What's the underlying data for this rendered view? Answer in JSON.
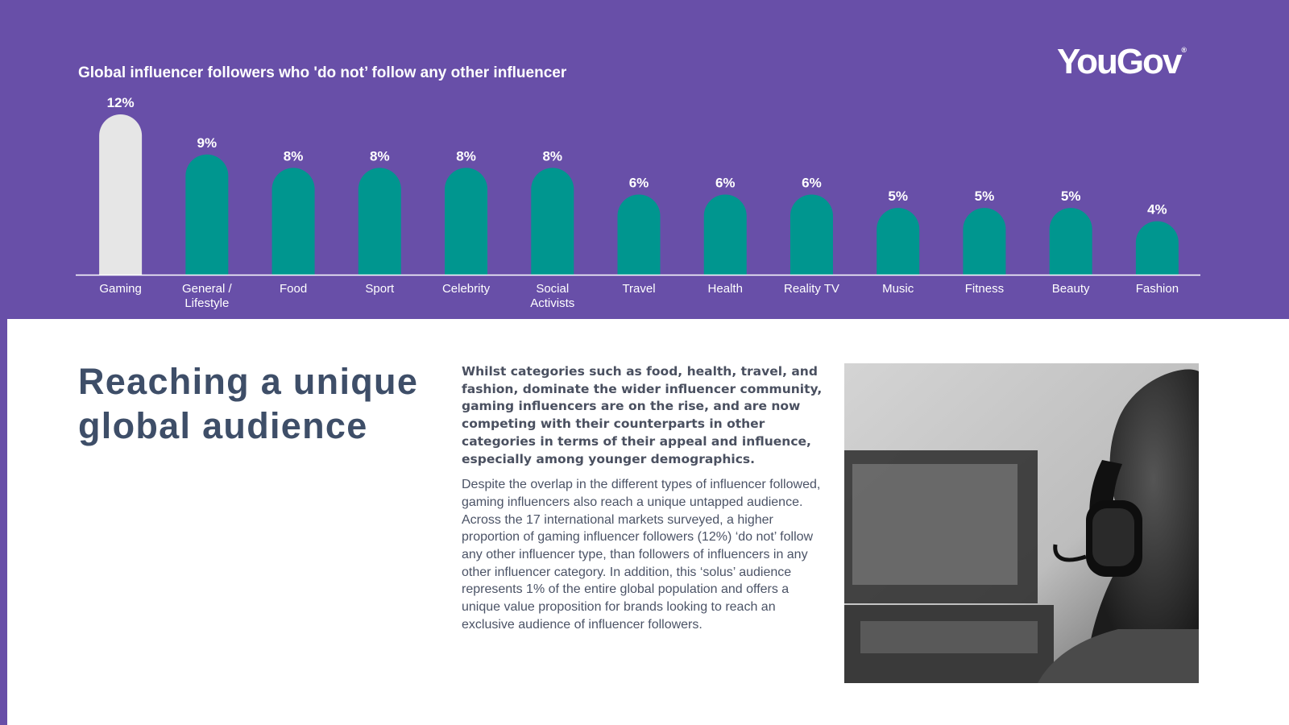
{
  "brand": {
    "logo_text": "YouGov",
    "logo_mark": "®"
  },
  "colors": {
    "background": "#684fa8",
    "highlight_bar": "#e6e6e6",
    "bar": "#00968f",
    "text_light": "#ffffff",
    "headline": "#3e4e68"
  },
  "chart_data": {
    "type": "bar",
    "title": "Global influencer followers who 'do not’ follow any other influencer",
    "categories": [
      "Gaming",
      "General / Lifestyle",
      "Food",
      "Sport",
      "Celebrity",
      "Social Activists",
      "Travel",
      "Health",
      "Reality TV",
      "Music",
      "Fitness",
      "Beauty",
      "Fashion"
    ],
    "category_lines": [
      [
        "Gaming"
      ],
      [
        "General /",
        "Lifestyle"
      ],
      [
        "Food"
      ],
      [
        "Sport"
      ],
      [
        "Celebrity"
      ],
      [
        "Social",
        "Activists"
      ],
      [
        "Travel"
      ],
      [
        "Health"
      ],
      [
        "Reality TV"
      ],
      [
        "Music"
      ],
      [
        "Fitness"
      ],
      [
        "Beauty"
      ],
      [
        "Fashion"
      ]
    ],
    "values": [
      12,
      9,
      8,
      8,
      8,
      8,
      6,
      6,
      6,
      5,
      5,
      5,
      4
    ],
    "data_labels": [
      "12%",
      "9%",
      "8%",
      "8%",
      "8%",
      "8%",
      "6%",
      "6%",
      "6%",
      "5%",
      "5%",
      "5%",
      "4%"
    ],
    "highlighted_category": "Gaming",
    "unit": "%",
    "ylim": [
      0,
      12
    ],
    "grid": false,
    "legend": "none",
    "bar_shape": "rounded top"
  },
  "content": {
    "headline": "Reaching a unique global audience",
    "lead": "Whilst categories such as food, health, travel, and fashion, dominate the wider influencer community, gaming influencers are on the rise, and are now competing with their counterparts in other categories in terms of their appeal and influence, especially among younger demographics.",
    "body": "Despite the overlap in the different types of influencer followed, gaming influencers also reach a unique untapped audience. Across the 17 international markets surveyed, a higher proportion of gaming influencer followers (12%) ‘do not’ follow any other influencer type, than followers of influencers in any other influencer category. In addition, this ‘solus’ audience represents 1% of the entire global population and offers a unique value proposition for brands looking to reach an exclusive audience of influencer followers."
  },
  "photo": {
    "subject": "person wearing gaming headset at computer monitor",
    "style": "black and white"
  }
}
